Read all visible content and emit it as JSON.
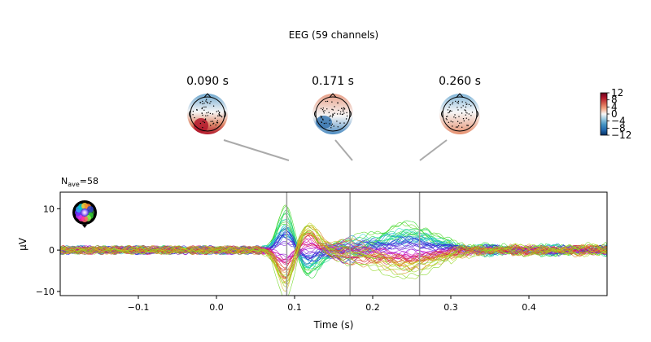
{
  "figure_title": "EEG (59 channels)",
  "chart_data": {
    "type": "line",
    "nave_label": "N",
    "nave_sub": "ave",
    "nave_value": "=58",
    "xlabel": "Time (s)",
    "ylabel": "µV",
    "xlim": [
      -0.2,
      0.5
    ],
    "ylim": [
      -11,
      14
    ],
    "xticks": [
      -0.1,
      0.0,
      0.1,
      0.2,
      0.3,
      0.4
    ],
    "xtick_labels": [
      "−0.1",
      "0.0",
      "0.1",
      "0.2",
      "0.3",
      "0.4"
    ],
    "yticks": [
      -10,
      0,
      10
    ],
    "ytick_labels": [
      "−10",
      "0",
      "10"
    ],
    "channel_count": 59,
    "vlines": [
      0.09,
      0.171,
      0.26
    ],
    "topomaps": [
      {
        "label": "0.090 s",
        "time": 0.09,
        "pattern": "posterior-left positive"
      },
      {
        "label": "0.171 s",
        "time": 0.171,
        "pattern": "anterior positive, posterior-left negative"
      },
      {
        "label": "0.260 s",
        "time": 0.26,
        "pattern": "anterior negative, posterior positive"
      }
    ],
    "colorbar": {
      "ticks": [
        12,
        8,
        4,
        0,
        -4,
        -8,
        -12
      ],
      "tick_labels": [
        "12",
        "8",
        "4",
        "0",
        "−4",
        "−8",
        "−12"
      ],
      "colormap": "RdBu_r",
      "top_color": "#67001f",
      "bottom_color": "#053061"
    },
    "series_envelope": [
      {
        "time": -0.2,
        "min": -1.5,
        "max": 1.5
      },
      {
        "time": 0.0,
        "min": -1.5,
        "max": 1.5
      },
      {
        "time": 0.07,
        "min": -1.5,
        "max": 1.8
      },
      {
        "time": 0.09,
        "min": -4.5,
        "max": 13.0
      },
      {
        "time": 0.11,
        "min": -9.5,
        "max": 3.5
      },
      {
        "time": 0.14,
        "min": -4.0,
        "max": 4.0
      },
      {
        "time": 0.171,
        "min": -7.0,
        "max": 5.0
      },
      {
        "time": 0.2,
        "min": -4.0,
        "max": 6.0
      },
      {
        "time": 0.24,
        "min": -5.5,
        "max": 7.5
      },
      {
        "time": 0.3,
        "min": -4.0,
        "max": 4.0
      },
      {
        "time": 0.4,
        "min": -2.0,
        "max": 2.5
      },
      {
        "time": 0.5,
        "min": -2.5,
        "max": 3.8
      }
    ],
    "grid": false,
    "legend": "head sensor-location inset, top-left"
  }
}
